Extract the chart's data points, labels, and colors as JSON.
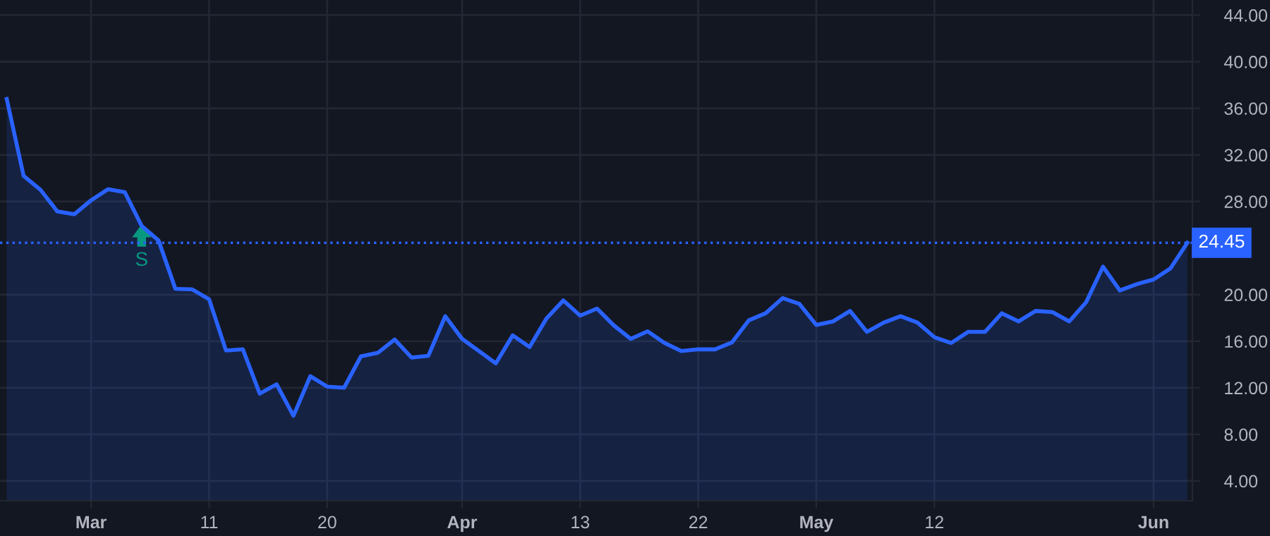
{
  "chart_data": {
    "type": "area",
    "categories": [
      null,
      null,
      null,
      null,
      null,
      "Mar",
      null,
      null,
      null,
      null,
      null,
      null,
      "11",
      null,
      null,
      null,
      null,
      null,
      null,
      "20",
      null,
      null,
      null,
      null,
      null,
      null,
      null,
      "Apr",
      null,
      null,
      null,
      null,
      null,
      null,
      "13",
      null,
      null,
      null,
      null,
      null,
      null,
      "22",
      null,
      null,
      null,
      null,
      null,
      null,
      "May",
      null,
      null,
      null,
      null,
      null,
      null,
      "12",
      null,
      null,
      null,
      null,
      null,
      null,
      null,
      null,
      null,
      null,
      null,
      null,
      "Jun",
      null,
      null
    ],
    "series": [
      {
        "color": "#2962ff",
        "values": [
          36.8,
          30.2,
          29.0,
          27.15,
          26.9,
          28.1,
          29.05,
          28.8,
          25.9,
          24.65,
          20.5,
          20.45,
          19.6,
          15.2,
          15.3,
          11.5,
          12.3,
          9.6,
          13.0,
          12.1,
          12.0,
          14.7,
          15.0,
          16.15,
          14.6,
          14.75,
          18.15,
          16.2,
          15.15,
          14.1,
          16.5,
          15.5,
          17.95,
          19.5,
          18.2,
          18.8,
          17.35,
          16.2,
          16.85,
          15.85,
          15.15,
          15.3,
          15.3,
          15.9,
          17.8,
          18.4,
          19.7,
          19.2,
          17.4,
          17.7,
          18.6,
          16.8,
          17.6,
          18.15,
          17.6,
          16.35,
          15.85,
          16.8,
          16.8,
          18.4,
          17.7,
          18.6,
          18.5,
          17.7,
          19.35,
          22.4,
          20.35,
          20.9,
          21.3,
          22.25,
          24.45
        ]
      }
    ],
    "ylim": [
      2.3,
      45.3
    ],
    "yticks": [
      {
        "value": 4,
        "label": "4.00"
      },
      {
        "value": 8,
        "label": "8.00"
      },
      {
        "value": 12,
        "label": "12.00"
      },
      {
        "value": 16,
        "label": "16.00"
      },
      {
        "value": 20,
        "label": "20.00"
      },
      {
        "value": 28,
        "label": "28.00"
      },
      {
        "value": 32,
        "label": "32.00"
      },
      {
        "value": 36,
        "label": "36.00"
      },
      {
        "value": 40,
        "label": "40.00"
      },
      {
        "value": 44,
        "label": "44.00"
      }
    ],
    "ref_lines": [
      {
        "axis": "y",
        "value": 24.45,
        "label": "24.45",
        "color": "#2962ff",
        "line_style": "dotted"
      }
    ],
    "annotations": [
      {
        "text": "S",
        "y": 25.0
      }
    ],
    "grid": true,
    "legend": false
  }
}
